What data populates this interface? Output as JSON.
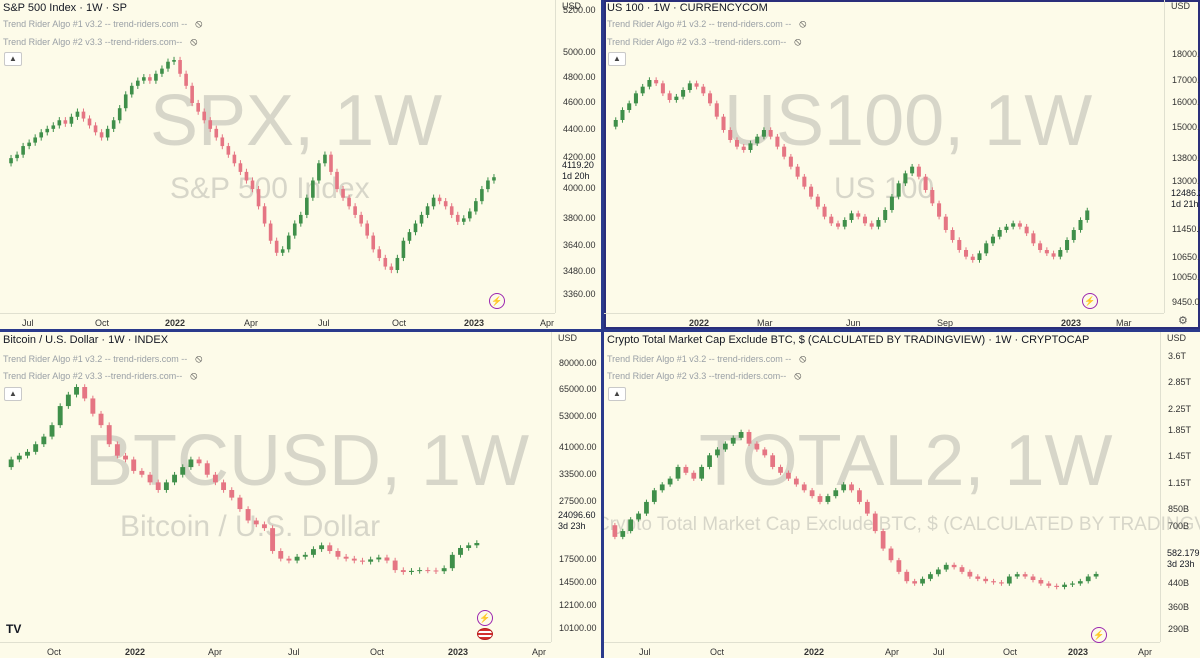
{
  "colors": {
    "up": "#3f8f4a",
    "down": "#e57583",
    "divider": "#2a3a8c",
    "bg": "#fdfbe9"
  },
  "indicators": [
    {
      "label": "Trend Rider Algo #1 v3.2 -- trend-riders.com --",
      "icon": "eye-off-icon"
    },
    {
      "label": "Trend Rider Algo #2 v3.3 --trend-riders.com--",
      "icon": "eye-off-icon"
    }
  ],
  "panes": [
    {
      "title": "S&P 500 Index · 1W · SP",
      "currency": "USD",
      "watermark_big": "SPX, 1W",
      "watermark_small": "S&P 500 Index",
      "price_labels": [
        "5200.00",
        "5000.00",
        "4800.00",
        "4600.00",
        "4400.00",
        "4200.00",
        "4000.00",
        "3800.00",
        "3640.00",
        "3480.00",
        "3360.00"
      ],
      "current_price": "4119.20",
      "countdown": "1d 20h",
      "x_labels": [
        "Jul",
        "Oct",
        "2022",
        "Apr",
        "Jul",
        "Oct",
        "2023",
        "Apr"
      ],
      "x_bold": [
        2,
        6
      ],
      "closes": [
        4200,
        4230,
        4250,
        4300,
        4320,
        4350,
        4380,
        4400,
        4420,
        4450,
        4430,
        4470,
        4500,
        4460,
        4420,
        4380,
        4350,
        4400,
        4450,
        4520,
        4600,
        4650,
        4680,
        4700,
        4680,
        4720,
        4750,
        4790,
        4800,
        4720,
        4650,
        4550,
        4500,
        4450,
        4400,
        4350,
        4300,
        4250,
        4200,
        4150,
        4100,
        4050,
        3950,
        3850,
        3750,
        3680,
        3700,
        3780,
        3850,
        3900,
        4000,
        4100,
        4200,
        4250,
        4150,
        4050,
        4000,
        3950,
        3900,
        3850,
        3780,
        3700,
        3650,
        3600,
        3580,
        3650,
        3750,
        3800,
        3850,
        3900,
        3950,
        4000,
        3980,
        3950,
        3900,
        3860,
        3880,
        3920,
        3980,
        4050,
        4100,
        4119
      ]
    },
    {
      "title": "US 100 · 1W · CURRENCYCOM",
      "currency": "USD",
      "watermark_big": "US100, 1W",
      "watermark_small": "US 100",
      "price_labels": [
        "18000.00",
        "17000.00",
        "16000.00",
        "15000.00",
        "13800.00",
        "13000.00",
        "11450.00",
        "10650.00",
        "10050.00",
        "9450.00"
      ],
      "current_price": "12486.2",
      "countdown": "1d 21h",
      "x_labels": [
        "2022",
        "Mar",
        "Jun",
        "Sep",
        "2023",
        "Mar"
      ],
      "x_bold": [
        0,
        4
      ],
      "closes": [
        15000,
        15200,
        15500,
        15700,
        16000,
        16200,
        16400,
        16300,
        16000,
        15800,
        15900,
        16100,
        16300,
        16200,
        16000,
        15700,
        15300,
        14900,
        14600,
        14400,
        14300,
        14500,
        14700,
        14900,
        14700,
        14400,
        14100,
        13800,
        13500,
        13200,
        12900,
        12600,
        12300,
        12100,
        12000,
        12200,
        12400,
        12300,
        12100,
        12000,
        12200,
        12500,
        12900,
        13300,
        13600,
        13800,
        13500,
        13100,
        12700,
        12300,
        11900,
        11600,
        11300,
        11100,
        11000,
        11200,
        11500,
        11700,
        11900,
        12000,
        12100,
        12000,
        11800,
        11500,
        11300,
        11200,
        11100,
        11300,
        11600,
        11900,
        12200,
        12486
      ]
    },
    {
      "title": "Bitcoin / U.S. Dollar · 1W · INDEX",
      "currency": "USD",
      "watermark_big": "BTCUSD, 1W",
      "watermark_small": "Bitcoin / U.S. Dollar",
      "price_labels": [
        "80000.00",
        "65000.00",
        "53000.00",
        "41000.00",
        "33500.00",
        "27500.00",
        "17500.00",
        "14500.00",
        "12100.00",
        "10100.00"
      ],
      "current_price": "24096.60",
      "countdown": "3d 23h",
      "x_labels": [
        "Oct",
        "2022",
        "Apr",
        "Jul",
        "Oct",
        "2023",
        "Apr"
      ],
      "x_bold": [
        1,
        5
      ],
      "closes": [
        44000,
        46000,
        47000,
        48000,
        50000,
        52000,
        55000,
        60000,
        63000,
        65000,
        62000,
        58000,
        55000,
        50000,
        47000,
        46000,
        43000,
        42000,
        40000,
        38000,
        40000,
        42000,
        44000,
        46000,
        45000,
        42000,
        40000,
        38000,
        36000,
        33000,
        30000,
        29000,
        28000,
        22000,
        20000,
        19500,
        20500,
        21000,
        22500,
        23500,
        22000,
        20500,
        20000,
        19500,
        19200,
        19800,
        20300,
        19500,
        17000,
        16500,
        16800,
        17000,
        16900,
        16700,
        17500,
        21000,
        22800,
        23500,
        24096
      ],
      "extra_icon": "us-flag-icon"
    },
    {
      "title": "Crypto Total Market Cap Exclude BTC, $ (CALCULATED BY TRADINGVIEW) · 1W · CRYPTOCAP",
      "currency": "USD",
      "watermark_big": "TOTAL2, 1W",
      "watermark_small": "Crypto Total Market Cap Exclude BTC, $ (CALCULATED BY TRADINGVIEW)",
      "price_labels": [
        "3.6T",
        "2.85T",
        "2.25T",
        "1.85T",
        "1.45T",
        "1.15T",
        "850B",
        "700B",
        "440B",
        "360B",
        "290B"
      ],
      "current_price": "582.179B",
      "countdown": "3d 23h",
      "x_labels": [
        "Jul",
        "Oct",
        "2022",
        "Apr",
        "Jul",
        "Oct",
        "2023",
        "Apr"
      ],
      "x_bold": [
        2,
        6
      ],
      "closes": [
        1000,
        900,
        950,
        1050,
        1100,
        1200,
        1300,
        1350,
        1400,
        1500,
        1450,
        1400,
        1500,
        1600,
        1650,
        1700,
        1750,
        1800,
        1700,
        1650,
        1600,
        1500,
        1450,
        1400,
        1350,
        1300,
        1250,
        1200,
        1250,
        1300,
        1350,
        1300,
        1200,
        1100,
        950,
        800,
        700,
        600,
        520,
        500,
        540,
        580,
        620,
        660,
        640,
        600,
        560,
        540,
        520,
        510,
        500,
        560,
        580,
        560,
        530,
        500,
        480,
        470,
        490,
        500,
        520,
        560,
        582
      ]
    }
  ],
  "toolbar": {
    "logo": "TV",
    "settings_icon": "gear-icon"
  }
}
